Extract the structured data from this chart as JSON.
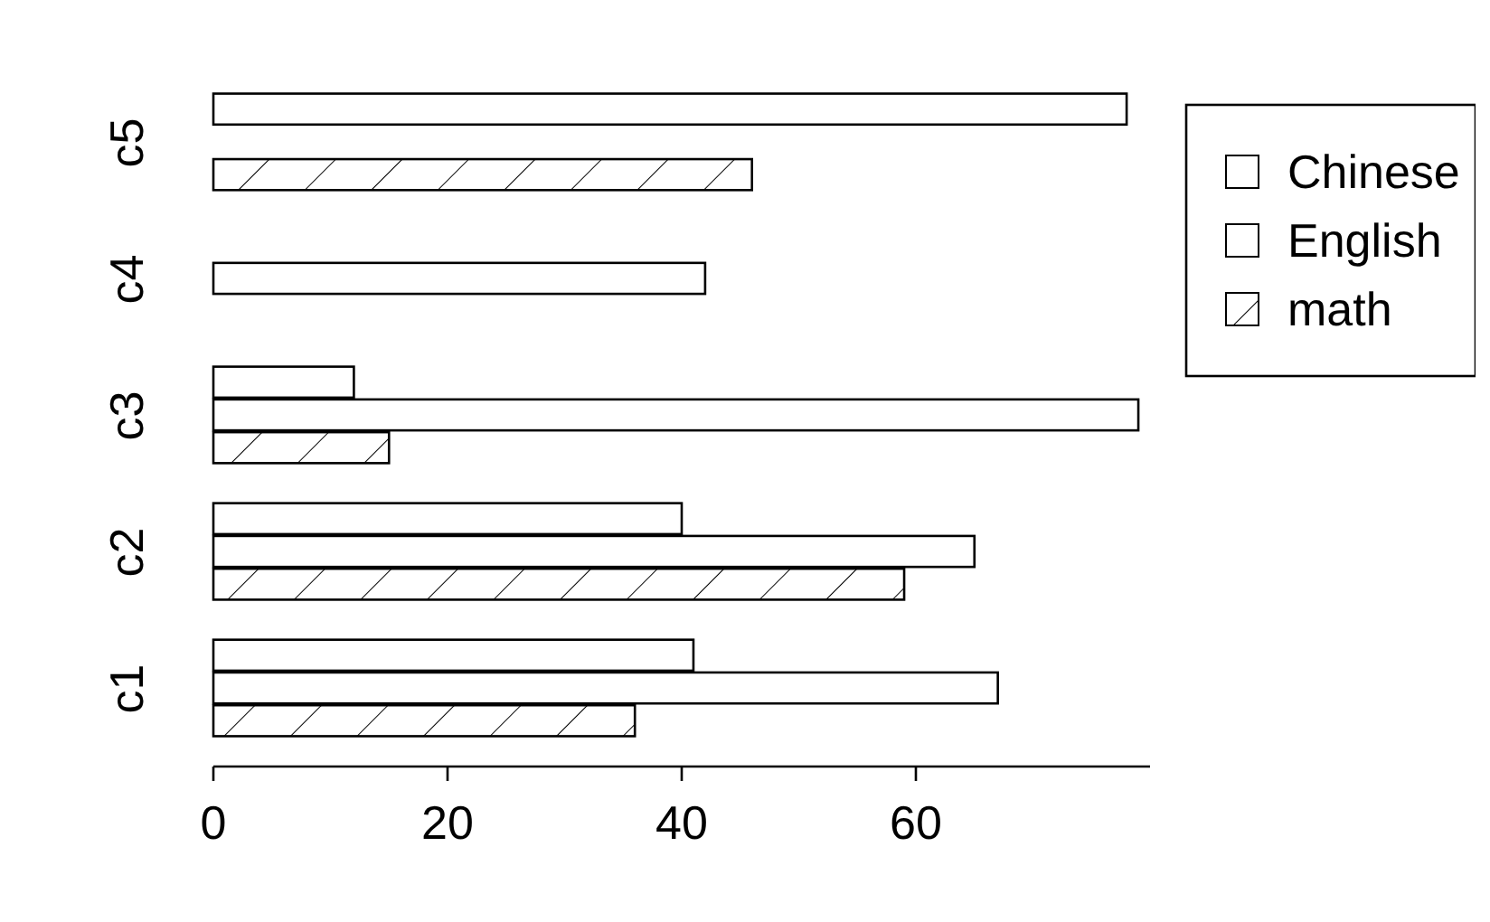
{
  "chart_data": {
    "type": "bar",
    "orientation": "horizontal",
    "categories": [
      "c5",
      "c4",
      "c3",
      "c2",
      "c1"
    ],
    "series": [
      {
        "name": "Chinese",
        "color": "#ffffff",
        "values": [
          78,
          null,
          12,
          40,
          41
        ]
      },
      {
        "name": "English",
        "color": "#ffffff",
        "values": [
          null,
          42,
          79,
          65,
          67
        ]
      },
      {
        "name": "math",
        "color": "#ffffff",
        "values": [
          46,
          null,
          15,
          59,
          36
        ]
      }
    ],
    "xlim": [
      0,
      80
    ],
    "xticks": [
      0,
      20,
      40,
      60
    ],
    "legend": "top right",
    "grid": false
  }
}
